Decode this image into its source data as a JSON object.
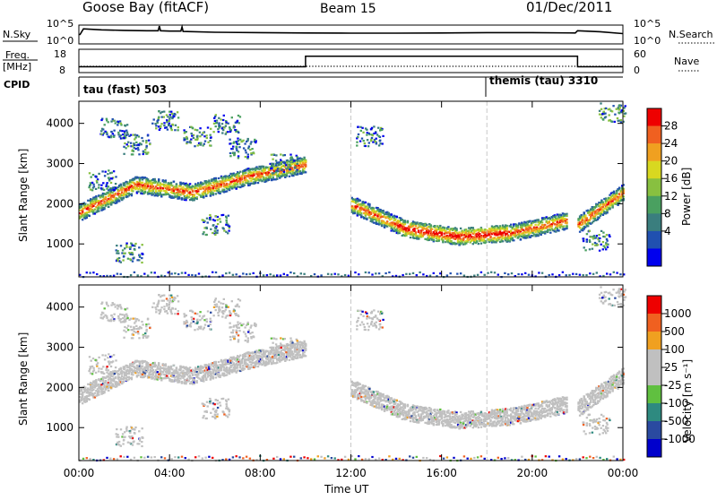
{
  "header": {
    "station": "Goose Bay (fitACF)",
    "beam": "Beam 15",
    "date": "01/Dec/2011"
  },
  "noise_panel": {
    "left_label": "N.Sky",
    "left_ticks": [
      "10^5",
      "10^0"
    ],
    "right_ticks": [
      "10^5",
      "10^0"
    ],
    "right_label": "N.Search"
  },
  "freq_panel": {
    "left_label_1": "Freq.",
    "left_label_2": "[MHz]",
    "left_ticks": [
      "18",
      "8"
    ],
    "right_ticks": [
      "60",
      "0"
    ],
    "right_label": "Nave"
  },
  "cpid_panel": {
    "label": "CPID",
    "segments": [
      {
        "label": "tau (fast) 503",
        "start_hour": 0
      },
      {
        "label": "themis (tau) 3310",
        "start_hour": 18
      }
    ]
  },
  "colors": {
    "power_scale": [
      "#0000ee",
      "#2050b0",
      "#3a7e7e",
      "#4aa060",
      "#88c040",
      "#d8d820",
      "#f0a020",
      "#f06020",
      "#ee0000"
    ],
    "velocity_scale": [
      "#0000cc",
      "#2a4aa0",
      "#2e8a80",
      "#60c040",
      "#c0c0c0",
      "#c0c0c0",
      "#f0a020",
      "#f06020",
      "#ee0000"
    ]
  },
  "chart_data": [
    {
      "type": "line",
      "name": "noise",
      "ylabel": "N.Sky",
      "x": [
        0,
        0.05,
        0.2,
        1,
        2,
        3,
        3.5,
        3.55,
        3.6,
        4,
        4.5,
        4.55,
        4.6,
        6,
        8,
        10,
        12,
        14,
        16,
        18,
        20,
        21.9,
        22,
        23,
        24
      ],
      "values": [
        0.5,
        0.5,
        0.8,
        0.75,
        0.72,
        0.7,
        0.7,
        0.95,
        0.7,
        0.68,
        0.68,
        0.9,
        0.66,
        0.62,
        0.6,
        0.58,
        0.57,
        0.57,
        0.58,
        0.6,
        0.6,
        0.58,
        0.7,
        0.65,
        0.55
      ]
    },
    {
      "type": "line",
      "name": "frequency_nave",
      "ylabel": "Freq. [MHz]",
      "y_right_label": "Nave",
      "ylim_left": [
        8,
        18
      ],
      "ylim_right": [
        0,
        60
      ],
      "series": [
        {
          "x": [
            0,
            10,
            10,
            22,
            22,
            24
          ],
          "values": [
            10.5,
            10.5,
            15,
            15,
            10.5,
            10.5
          ]
        }
      ]
    },
    {
      "type": "heatmap",
      "name": "power",
      "xlabel": "",
      "ylabel": "Slant Range [km]",
      "xlim": [
        0,
        24
      ],
      "ylim": [
        180,
        4550
      ],
      "yticks": [
        1000,
        2000,
        3000,
        4000
      ],
      "colorbar": {
        "label": "Power [dB]",
        "ticks": [
          "4",
          "8",
          "12",
          "16",
          "20",
          "24",
          "28"
        ]
      },
      "echo_bands": [
        {
          "start_hour": 0.0,
          "end_hour": 10.0,
          "range_km": [
            1800,
            2500,
            2300,
            2700,
            3000
          ]
        },
        {
          "start_hour": 12.0,
          "end_hour": 21.5,
          "range_km": [
            2000,
            1400,
            1200,
            1300,
            1600
          ]
        },
        {
          "start_hour": 22.0,
          "end_hour": 24.0,
          "range_km": [
            1500,
            1900,
            2300
          ]
        }
      ]
    },
    {
      "type": "heatmap",
      "name": "velocity",
      "xlabel": "Time UT",
      "ylabel": "Slant Range [km]",
      "xlim": [
        0,
        24
      ],
      "ylim": [
        180,
        4550
      ],
      "xticks": [
        "00:00",
        "04:00",
        "08:00",
        "12:00",
        "16:00",
        "20:00",
        "00:00"
      ],
      "yticks": [
        1000,
        2000,
        3000,
        4000
      ],
      "colorbar": {
        "label": "Velocity [m s⁻¹]",
        "ticks": [
          "1000",
          "500",
          "100",
          "25",
          "-25",
          "-100",
          "-500",
          "-1000"
        ]
      }
    }
  ]
}
